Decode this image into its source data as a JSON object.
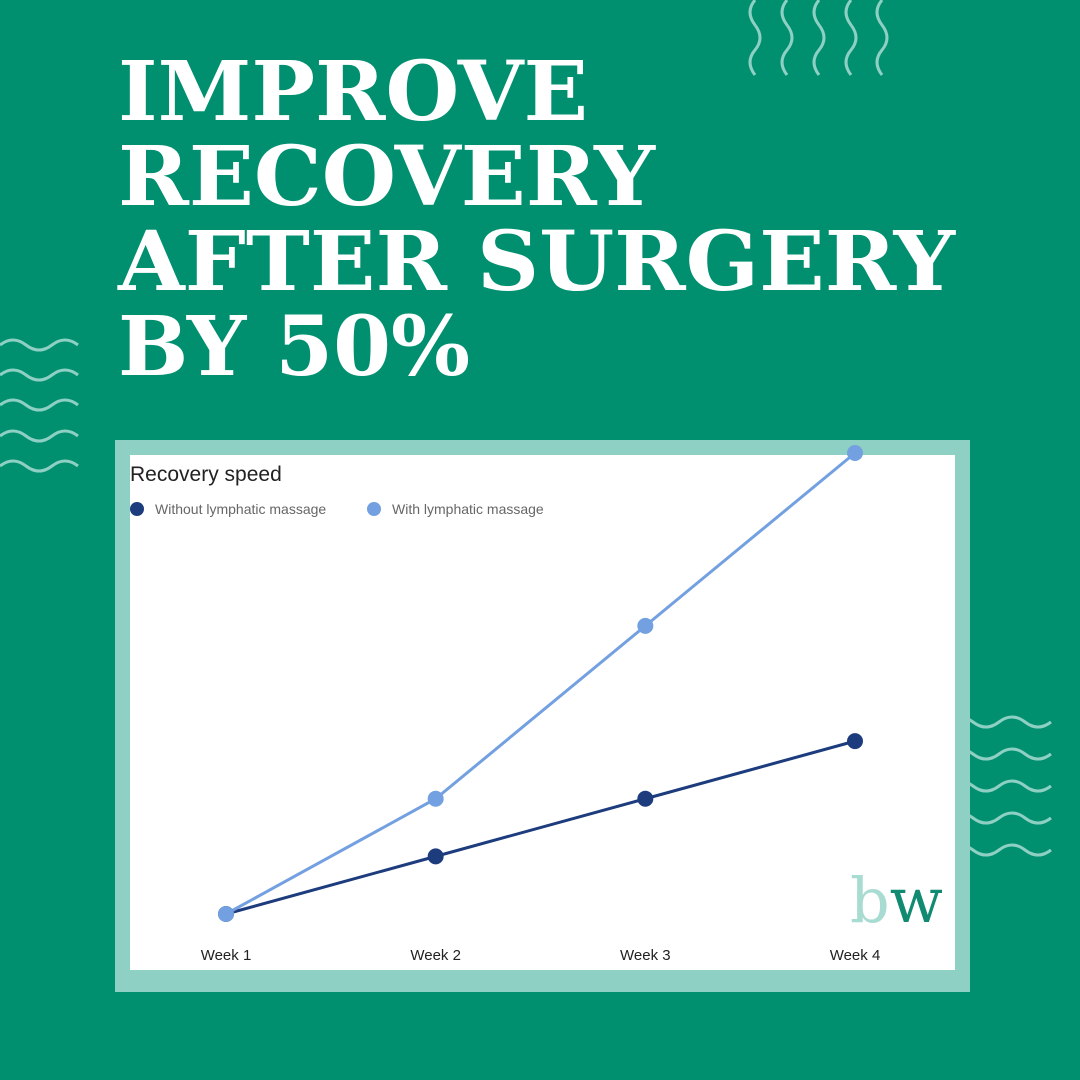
{
  "headline": [
    "IMPROVE",
    "RECOVERY",
    "AFTER SURGERY",
    "BY 50%"
  ],
  "logo": [
    "b",
    "w"
  ],
  "chart_data": {
    "type": "line",
    "title": "Recovery speed",
    "categories": [
      "Week 1",
      "Week 2",
      "Week 3",
      "Week 4"
    ],
    "series": [
      {
        "name": "Without lymphatic massage",
        "color": "#1d3c7e",
        "values": [
          0,
          1,
          2,
          3
        ]
      },
      {
        "name": "With lymphatic massage",
        "color": "#73a0e0",
        "values": [
          0,
          2,
          5,
          8
        ]
      }
    ],
    "ylim": [
      0,
      8
    ],
    "grid": false
  }
}
